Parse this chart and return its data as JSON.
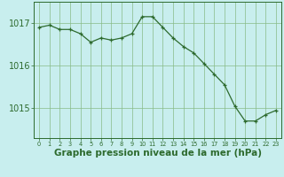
{
  "x": [
    0,
    1,
    2,
    3,
    4,
    5,
    6,
    7,
    8,
    9,
    10,
    11,
    12,
    13,
    14,
    15,
    16,
    17,
    18,
    19,
    20,
    21,
    22,
    23
  ],
  "y": [
    1016.9,
    1016.95,
    1016.85,
    1016.85,
    1016.75,
    1016.55,
    1016.65,
    1016.6,
    1016.65,
    1016.75,
    1017.15,
    1017.15,
    1016.9,
    1016.65,
    1016.45,
    1016.3,
    1016.05,
    1015.8,
    1015.55,
    1015.05,
    1014.7,
    1014.7,
    1014.85,
    1014.95
  ],
  "line_color": "#2d6a2d",
  "marker_color": "#2d6a2d",
  "bg_color": "#c8eeee",
  "plot_bg_color": "#c8eeee",
  "grid_color": "#88bb88",
  "yticks": [
    1015,
    1016,
    1017
  ],
  "ytick_fontsize": 7,
  "xlabel": "Graphe pression niveau de la mer (hPa)",
  "xlabel_fontsize": 7.5,
  "xlim": [
    -0.5,
    23.5
  ],
  "ylim": [
    1014.3,
    1017.5
  ],
  "xtick_labels": [
    "0",
    "1",
    "2",
    "3",
    "4",
    "5",
    "6",
    "7",
    "8",
    "9",
    "10",
    "11",
    "12",
    "13",
    "14",
    "15",
    "16",
    "17",
    "18",
    "19",
    "20",
    "21",
    "22",
    "23"
  ]
}
